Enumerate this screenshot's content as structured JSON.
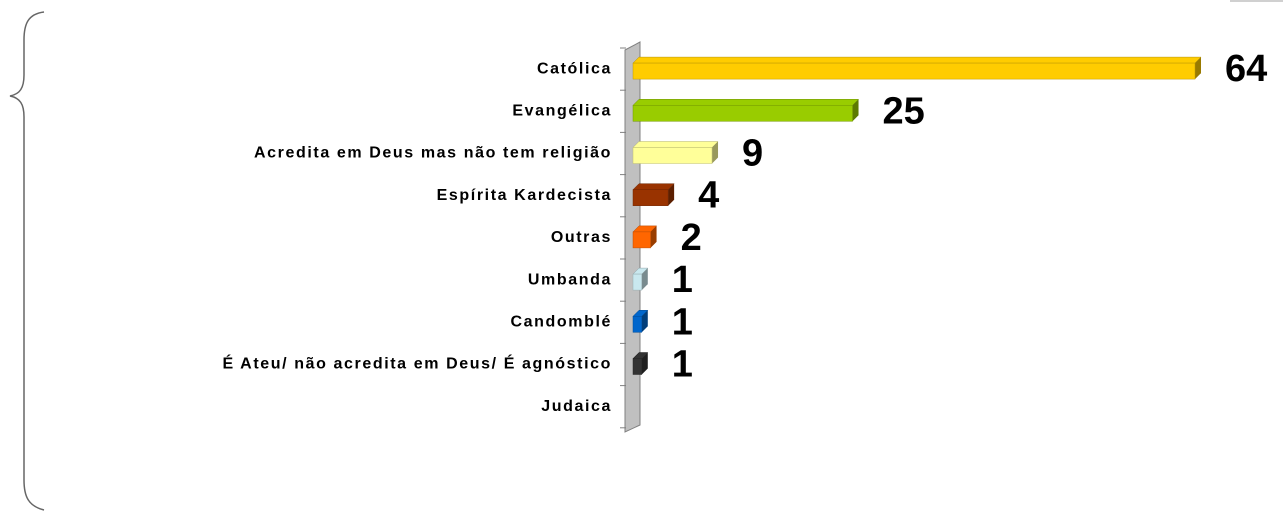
{
  "chart_data": {
    "type": "bar",
    "orientation": "horizontal",
    "categories": [
      "Católica",
      "Evangélica",
      "Acredita em Deus mas não tem religião",
      "Espírita Kardecista",
      "Outras",
      "Umbanda",
      "Candomblé",
      "É Ateu/ não acredita em Deus/ É agnóstico",
      "Judaica"
    ],
    "values": [
      64,
      25,
      9,
      4,
      2,
      1,
      1,
      1,
      null
    ],
    "colors": [
      "#ffcc00",
      "#99cc00",
      "#ffff99",
      "#993300",
      "#ff6600",
      "#c9e8ef",
      "#0066cc",
      "#333333",
      "#999999"
    ]
  }
}
